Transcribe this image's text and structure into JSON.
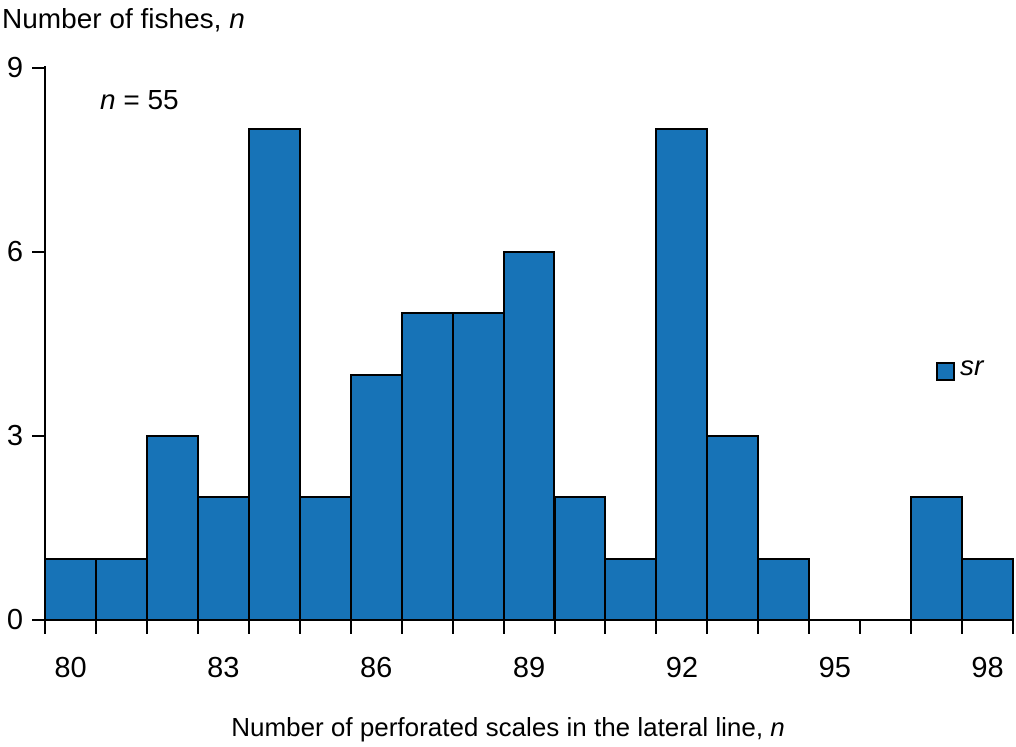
{
  "chart_data": {
    "type": "bar",
    "subtype": "histogram",
    "title": {
      "text": "Number of fishes, ",
      "italic_suffix": "n"
    },
    "annotation": {
      "italic": "n",
      "text": " = 55"
    },
    "xlabel": {
      "text": "Number of perforated scales in the lateral line, ",
      "italic_suffix": "n"
    },
    "categories": [
      80,
      81,
      82,
      83,
      84,
      85,
      86,
      87,
      88,
      89,
      90,
      91,
      92,
      93,
      94,
      95,
      96,
      97,
      98
    ],
    "values": [
      1,
      1,
      3,
      2,
      8,
      2,
      4,
      5,
      5,
      6,
      2,
      1,
      8,
      3,
      1,
      0,
      0,
      2,
      1
    ],
    "x_tick_labels": [
      80,
      83,
      86,
      89,
      92,
      95,
      98
    ],
    "y_ticks": [
      0,
      3,
      6,
      9
    ],
    "ylim": [
      0,
      9
    ],
    "grid": false,
    "legend": {
      "label": "sr",
      "position": "right-middle"
    },
    "colors": {
      "bar_fill": "#1773B7",
      "bar_border": "#000000",
      "axis": "#000000",
      "text": "#000000",
      "background": "#FFFFFF"
    }
  }
}
